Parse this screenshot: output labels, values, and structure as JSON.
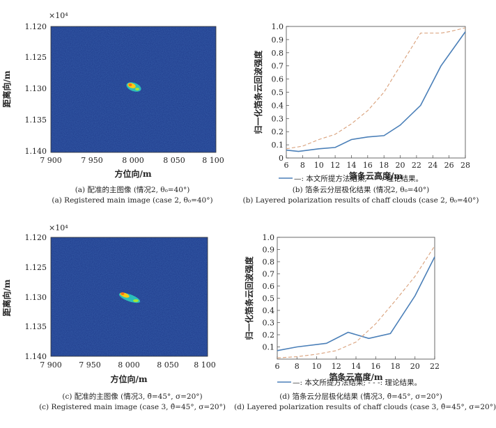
{
  "panels": {
    "a": {
      "exponent": "×10⁴",
      "ylabel": "距离向/m",
      "xlabel": "方位向/m",
      "yticks": [
        "1.120",
        "1.125",
        "1.130",
        "1.135",
        "1.140"
      ],
      "xticks": [
        "7 900",
        "7 950",
        "8 000",
        "8 050",
        "8 100"
      ],
      "caption_cn": "(a) 配准的主图像 (情况2, θ₀=40°)",
      "caption_en": "(a) Registered main image (case 2, θ₀=40°)"
    },
    "c": {
      "exponent": "×10⁴",
      "ylabel": "距离向/m",
      "xlabel": "方位向/m",
      "yticks": [
        "1.120",
        "1.125",
        "1.130",
        "1.135",
        "1.140"
      ],
      "xticks": [
        "7 900",
        "7 950",
        "8 000",
        "8 050",
        "8 100"
      ],
      "caption_cn": "(c) 配准的主图像 (情况3, θ̄=45°, σ=20°)",
      "caption_en": "(c) Registered main image (case 3, θ̄=45°, σ=20°)"
    },
    "b": {
      "caption_cn": "(b) 箔条云分层极化结果 (情况2, θ₀=40°)",
      "caption_en": "(b) Layered polarization results of chaff clouds (case 2, θ₀=40°)"
    },
    "d": {
      "caption_cn": "(d) 箔条云分层极化结果 (情况3, θ̄=45°, σ=20°)",
      "caption_en": "(d) Layered polarization results of chaff clouds  (case 3, θ̄=45°, σ=20°)"
    }
  },
  "chart_data": [
    {
      "type": "line",
      "id": "b",
      "xlabel": "箔条云高度/m",
      "ylabel": "归一化箔条云回波强度",
      "xlim": [
        6,
        28
      ],
      "ylim": [
        0,
        1
      ],
      "xticks": [
        6,
        8,
        10,
        12,
        14,
        16,
        18,
        20,
        22,
        24,
        26,
        28
      ],
      "yticks": [
        0,
        0.1,
        0.2,
        0.3,
        0.4,
        0.5,
        0.6,
        0.7,
        0.8,
        0.9,
        1.0
      ],
      "legend": "—: 本文所提方法结果; - - -: 理论结果。",
      "series": [
        {
          "name": "本文所提方法结果",
          "color": "#4a7fb8",
          "dash": "",
          "x": [
            6,
            7.5,
            10,
            12,
            14,
            16,
            18,
            20,
            22.5,
            25,
            28
          ],
          "y": [
            0.06,
            0.05,
            0.07,
            0.08,
            0.14,
            0.16,
            0.17,
            0.25,
            0.4,
            0.7,
            0.96
          ]
        },
        {
          "name": "理论结果",
          "color": "#d9a07a",
          "dash": "5,3",
          "x": [
            6,
            8,
            10,
            12,
            14,
            16,
            18,
            20,
            22.5,
            25,
            26,
            28
          ],
          "y": [
            0.07,
            0.09,
            0.14,
            0.18,
            0.26,
            0.36,
            0.5,
            0.7,
            0.95,
            0.95,
            0.96,
            0.99
          ]
        }
      ]
    },
    {
      "type": "line",
      "id": "d",
      "xlabel": "箔条云高度/m",
      "ylabel": "归一化箔条云回波强度",
      "xlim": [
        6,
        22
      ],
      "ylim": [
        0,
        1
      ],
      "xticks": [
        6,
        8,
        10,
        12,
        14,
        16,
        18,
        20,
        22
      ],
      "yticks": [
        0.1,
        0.2,
        0.3,
        0.4,
        0.5,
        0.6,
        0.7,
        0.8,
        0.9,
        1.0
      ],
      "legend": "—: 本文所提方法结果; - - -: 理论结果。",
      "series": [
        {
          "name": "本文所提方法结果",
          "color": "#4a7fb8",
          "dash": "",
          "x": [
            6,
            8,
            11,
            13.2,
            15.3,
            17.5,
            20,
            22
          ],
          "y": [
            0.07,
            0.1,
            0.13,
            0.22,
            0.17,
            0.21,
            0.52,
            0.84
          ]
        },
        {
          "name": "理论结果",
          "color": "#d9a07a",
          "dash": "5,3",
          "x": [
            6,
            8,
            10,
            12,
            14,
            16,
            18,
            20,
            22
          ],
          "y": [
            0.01,
            0.02,
            0.04,
            0.07,
            0.14,
            0.29,
            0.48,
            0.68,
            0.93
          ]
        }
      ]
    }
  ],
  "colors": {
    "field_bg": "#1e3a8a",
    "solid_line": "#4a7fb8",
    "dashed_line": "#d9a07a"
  }
}
